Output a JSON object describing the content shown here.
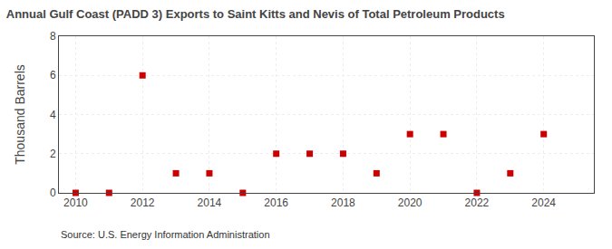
{
  "chart_data": {
    "type": "scatter",
    "title": "Annual Gulf Coast (PADD 3) Exports to Saint Kitts and Nevis of Total Petroleum Products",
    "y_label": "Thousand Barrels",
    "annotations": [
      "Source: U.S. Energy Information Administration"
    ],
    "x": [
      2010,
      2011,
      2012,
      2013,
      2014,
      2015,
      2016,
      2017,
      2018,
      2019,
      2020,
      2021,
      2022,
      2023,
      2024
    ],
    "values": [
      0,
      0,
      6,
      1,
      1,
      0,
      2,
      2,
      2,
      1,
      3,
      3,
      0,
      1,
      3
    ],
    "color": "#cc0000",
    "marker": "square",
    "xlim": [
      2009.5,
      2025.5
    ],
    "xticks": [
      2010,
      2012,
      2014,
      2016,
      2018,
      2020,
      2022,
      2024
    ],
    "ylim": [
      0,
      8
    ],
    "yticks": [
      0,
      2,
      4,
      6,
      8
    ],
    "grid": true
  }
}
